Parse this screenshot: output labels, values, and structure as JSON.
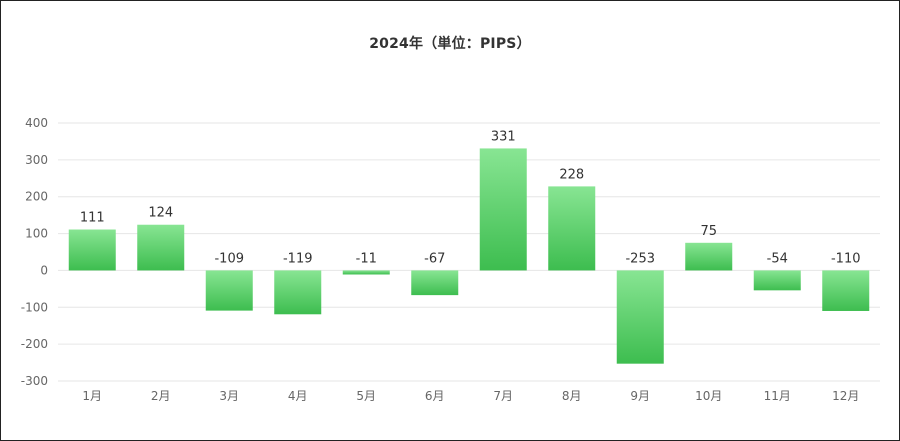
{
  "chart_data": {
    "type": "bar",
    "title": "2024年（単位：PIPS）",
    "categories": [
      "1月",
      "2月",
      "3月",
      "4月",
      "5月",
      "6月",
      "7月",
      "8月",
      "9月",
      "10月",
      "11月",
      "12月"
    ],
    "values": [
      111,
      124,
      -109,
      -119,
      -11,
      -67,
      331,
      228,
      -253,
      75,
      -54,
      -110
    ],
    "ylim": [
      -300,
      400
    ],
    "yticks": [
      400,
      300,
      200,
      100,
      0,
      -100,
      -200,
      -300
    ],
    "grid": true,
    "legend": "none",
    "bar_color_top": "#88e593",
    "bar_color_bottom": "#3dbd4f"
  }
}
